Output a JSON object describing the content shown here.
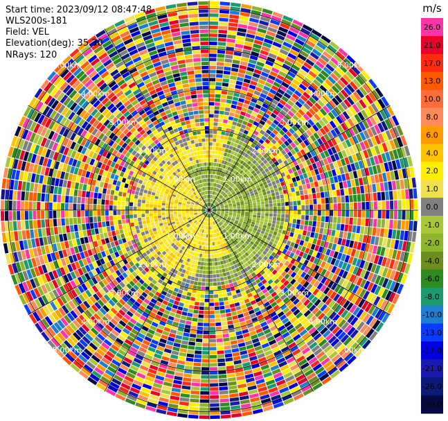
{
  "header": {
    "start_time": "Start time: 2023/09/12 08:47:48",
    "instrument": "WLS200s-181",
    "field": "Field: VEL",
    "elevation": "Elevation(deg): 35.30",
    "nrays": "NRays: 120"
  },
  "chart_data": {
    "type": "heatmap",
    "projection": "polar-ppi",
    "field": "VEL",
    "units": "m/s",
    "nrays": 120,
    "range_rings_km": [
      {
        "value": 1,
        "label": "1.00km"
      },
      {
        "value": 2,
        "label": "2.00km"
      },
      {
        "value": 3,
        "label": "3.00km"
      },
      {
        "value": 4,
        "label": "4.00km"
      },
      {
        "value": 5,
        "label": "5.00km"
      }
    ],
    "max_range_km": 5.2,
    "spokes_deg": [
      0,
      30,
      60,
      90,
      120,
      150,
      180,
      210,
      240,
      270,
      300,
      330
    ],
    "colorbar": {
      "title": "m/s",
      "bins": [
        {
          "value": "26.0",
          "color": "#ff33aa"
        },
        {
          "value": "21.0",
          "color": "#e8002a"
        },
        {
          "value": "17.0",
          "color": "#ff2a12"
        },
        {
          "value": "13.0",
          "color": "#ff5a00"
        },
        {
          "value": "10.0",
          "color": "#ff6e3a"
        },
        {
          "value": "8.0",
          "color": "#ff8a5a"
        },
        {
          "value": "6.0",
          "color": "#ff9a00"
        },
        {
          "value": "4.0",
          "color": "#ffc400"
        },
        {
          "value": "2.0",
          "color": "#ffee00"
        },
        {
          "value": "1.0",
          "color": "#f0e050"
        },
        {
          "value": "0.0",
          "color": "#808080"
        },
        {
          "value": "-1.0",
          "color": "#a8c83c"
        },
        {
          "value": "-2.0",
          "color": "#8fb52a"
        },
        {
          "value": "-4.0",
          "color": "#6b8e1e"
        },
        {
          "value": "-6.0",
          "color": "#2e8b20"
        },
        {
          "value": "-8.0",
          "color": "#1c9a70"
        },
        {
          "value": "-10.0",
          "color": "#1e7fd0"
        },
        {
          "value": "-13.0",
          "color": "#0a3cff"
        },
        {
          "value": "-17.0",
          "color": "#0000e0"
        },
        {
          "value": "-21.0",
          "color": "#1a1ab0"
        },
        {
          "value": "-26.0",
          "color": "#0c1a7a"
        },
        {
          "value": "-30.0",
          "color": "#050a45"
        }
      ]
    },
    "regions": [
      {
        "name": "inner-positive",
        "range_km": [
          0,
          1.9
        ],
        "dominant_value": "2.0"
      },
      {
        "name": "inner-negative",
        "range_km": [
          0,
          1.9
        ],
        "dominant_value": "-2.0"
      },
      {
        "name": "noise",
        "range_km": [
          2.0,
          5.2
        ],
        "dominant_value": "mixed"
      }
    ]
  },
  "colors": {
    "rings": "#000000",
    "spokes": "#000000",
    "background": "#ffffff"
  }
}
